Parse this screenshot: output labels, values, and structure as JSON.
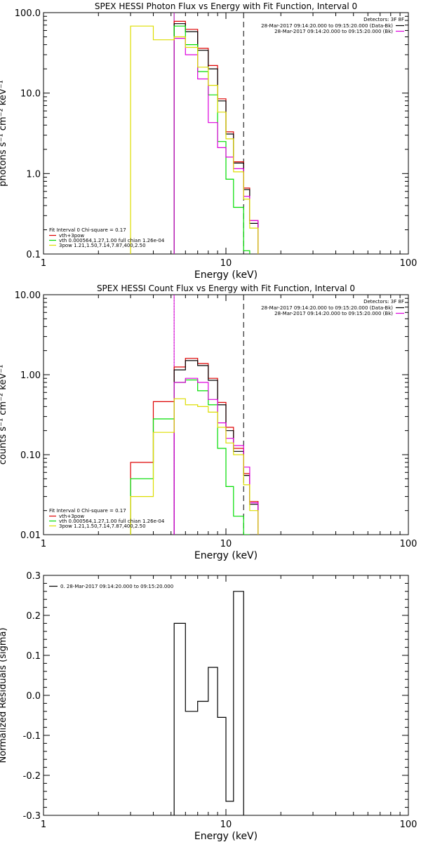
{
  "chart_data": [
    {
      "type": "line",
      "title": "SPEX HESSI Photon Flux vs Energy with Fit Function, Interval 0",
      "xlabel": "Energy (keV)",
      "ylabel": "photons s⁻¹ cm⁻² keV⁻¹",
      "xscale": "log",
      "yscale": "log",
      "xlim": [
        1,
        100
      ],
      "ylim": [
        0.1,
        100
      ],
      "x_ticks": [
        {
          "v": 1,
          "label": "1"
        },
        {
          "v": 10,
          "label": "10"
        },
        {
          "v": 100,
          "label": "100"
        }
      ],
      "y_ticks": [
        {
          "v": 0.1,
          "label": "0.1"
        },
        {
          "v": 1,
          "label": "1.0"
        },
        {
          "v": 10,
          "label": "10.0"
        },
        {
          "v": 100,
          "label": "100.0"
        }
      ],
      "vlines": [
        {
          "x": 5.2,
          "style": "solid",
          "color": "#00dd00"
        },
        {
          "x": 5.2,
          "style": "solid",
          "color": "#dd00dd"
        },
        {
          "x": 12.5,
          "style": "dashed",
          "color": "#000000"
        }
      ],
      "top_legend": {
        "title": "Detectors: 3F 8F",
        "entries": [
          {
            "text": "28-Mar-2017 09:14:20.000 to 09:15:20.000 (Data-Bk)",
            "color": "#000000"
          },
          {
            "text": "28-Mar-2017 09:14:20.000 to 09:15:20.000 (Bk)",
            "color": "#dd00dd"
          }
        ]
      },
      "fit_legend": {
        "header": "Fit Interval  0    Chi-square = 0.17",
        "entries": [
          {
            "text": "vth+3pow",
            "color": "#dd0000"
          },
          {
            "text": "vth 0.000564,1.27,1.00   full chian 1.26e-04",
            "color": "#00dd00"
          },
          {
            "text": "3pow 1.21,1.50,7.14,7.87,400,2.50",
            "color": "#dddd00"
          }
        ]
      },
      "bin_edges": [
        3,
        4,
        5.2,
        6,
        7,
        8,
        9,
        10,
        11,
        12.5,
        13.5,
        15
      ],
      "series": [
        {
          "color": "#dd0000",
          "values": [
            null,
            null,
            78,
            62,
            36,
            22,
            8.5,
            3.3,
            1.4,
            0.66,
            0.26,
            0.11
          ]
        },
        {
          "color": "#000000",
          "values": [
            null,
            null,
            73,
            58,
            34,
            20,
            8,
            3.1,
            1.35,
            0.63,
            0.24,
            null
          ]
        },
        {
          "color": "#00dd00",
          "values": [
            null,
            null,
            68,
            40,
            18.5,
            9.5,
            2.5,
            0.85,
            0.38,
            0.11,
            null,
            null
          ]
        },
        {
          "color": "#dd00dd",
          "values": [
            null,
            null,
            48,
            30,
            15,
            4.3,
            2.1,
            1.6,
            1.15,
            0.52,
            0.26,
            0.1
          ]
        },
        {
          "color": "#dddd00",
          "values": [
            68,
            46,
            50,
            37,
            21,
            12.5,
            5.8,
            2.7,
            1.05,
            0.48,
            0.21,
            null
          ]
        }
      ]
    },
    {
      "type": "line",
      "title": "SPEX HESSI Count Flux vs Energy with Fit Function, Interval 0",
      "xlabel": "Energy (keV)",
      "ylabel": "counts s⁻¹ cm⁻² keV⁻¹",
      "xscale": "log",
      "yscale": "log",
      "xlim": [
        1,
        100
      ],
      "ylim": [
        0.01,
        10
      ],
      "x_ticks": [
        {
          "v": 1,
          "label": "1"
        },
        {
          "v": 10,
          "label": "10"
        },
        {
          "v": 100,
          "label": "100"
        }
      ],
      "y_ticks": [
        {
          "v": 0.01,
          "label": "0.01"
        },
        {
          "v": 0.1,
          "label": "0.10"
        },
        {
          "v": 1,
          "label": "1.00"
        },
        {
          "v": 10,
          "label": "10.00"
        }
      ],
      "vlines": [
        {
          "x": 5.2,
          "style": "dotted",
          "color": "#000000"
        },
        {
          "x": 5.2,
          "style": "solid",
          "color": "#dd00dd"
        },
        {
          "x": 12.5,
          "style": "dashed",
          "color": "#000000"
        }
      ],
      "top_legend": {
        "title": "Detectors: 3F 8F",
        "entries": [
          {
            "text": "28-Mar-2017 09:14:20.000 to 09:15:20.000 (Data-Bk)",
            "color": "#000000"
          },
          {
            "text": "28-Mar-2017 09:14:20.000 to 09:15:20.000 (Bk)",
            "color": "#dd00dd"
          }
        ]
      },
      "fit_legend": {
        "header": "Fit Interval  0    Chi-square = 0.17",
        "entries": [
          {
            "text": "vth+3pow",
            "color": "#dd0000"
          },
          {
            "text": "vth 0.000564,1.27,1.00   full chian 1.26e-04",
            "color": "#00dd00"
          },
          {
            "text": "3pow 1.21,1.50,7.14,7.87,400,2.50",
            "color": "#dddd00"
          }
        ]
      },
      "bin_edges": [
        3,
        4,
        5.2,
        6,
        7,
        8,
        9,
        10,
        11,
        12.5,
        13.5,
        15
      ],
      "series": [
        {
          "color": "#dd0000",
          "values": [
            0.08,
            0.46,
            1.25,
            1.6,
            1.38,
            0.9,
            0.45,
            0.22,
            0.12,
            0.058,
            0.026,
            0.012
          ]
        },
        {
          "color": "#000000",
          "values": [
            null,
            null,
            1.15,
            1.5,
            1.3,
            0.85,
            0.42,
            0.2,
            0.11,
            0.055,
            0.024,
            null
          ]
        },
        {
          "color": "#00dd00",
          "values": [
            0.05,
            0.28,
            0.8,
            0.86,
            0.63,
            0.42,
            0.12,
            0.04,
            0.017,
            0.01,
            null,
            null
          ]
        },
        {
          "color": "#dd00dd",
          "values": [
            null,
            null,
            0.8,
            0.9,
            0.8,
            0.49,
            0.25,
            0.16,
            0.13,
            0.07,
            0.025,
            0.01
          ]
        },
        {
          "color": "#dddd00",
          "values": [
            0.03,
            0.19,
            0.5,
            0.42,
            0.4,
            0.34,
            0.22,
            0.14,
            0.1,
            0.042,
            0.02,
            0.01
          ]
        }
      ]
    },
    {
      "type": "line",
      "title": "",
      "xlabel": "Energy (keV)",
      "ylabel": "Normalized Residuals (sigma)",
      "xscale": "log",
      "yscale": "linear",
      "xlim": [
        1,
        100
      ],
      "ylim": [
        -0.3,
        0.3
      ],
      "x_ticks": [
        {
          "v": 1,
          "label": "1"
        },
        {
          "v": 10,
          "label": "10"
        },
        {
          "v": 100,
          "label": "100"
        }
      ],
      "y_ticks": [
        {
          "v": -0.3,
          "label": "-0.3"
        },
        {
          "v": -0.2,
          "label": "-0.2"
        },
        {
          "v": -0.1,
          "label": "-0.1"
        },
        {
          "v": 0,
          "label": "0.0"
        },
        {
          "v": 0.1,
          "label": "0.1"
        },
        {
          "v": 0.2,
          "label": "0.2"
        },
        {
          "v": 0.3,
          "label": "0.3"
        }
      ],
      "legend": [
        {
          "text": "0. 28-Mar-2017 09:14:20.000 to 09:15:20.000",
          "color": "#000000"
        }
      ],
      "bin_edges": [
        5.2,
        6,
        7,
        8,
        9,
        10,
        11,
        12.5
      ],
      "series": [
        {
          "color": "#000000",
          "values": [
            0.18,
            -0.04,
            -0.015,
            0.07,
            -0.055,
            -0.265,
            0.26
          ]
        }
      ]
    }
  ]
}
